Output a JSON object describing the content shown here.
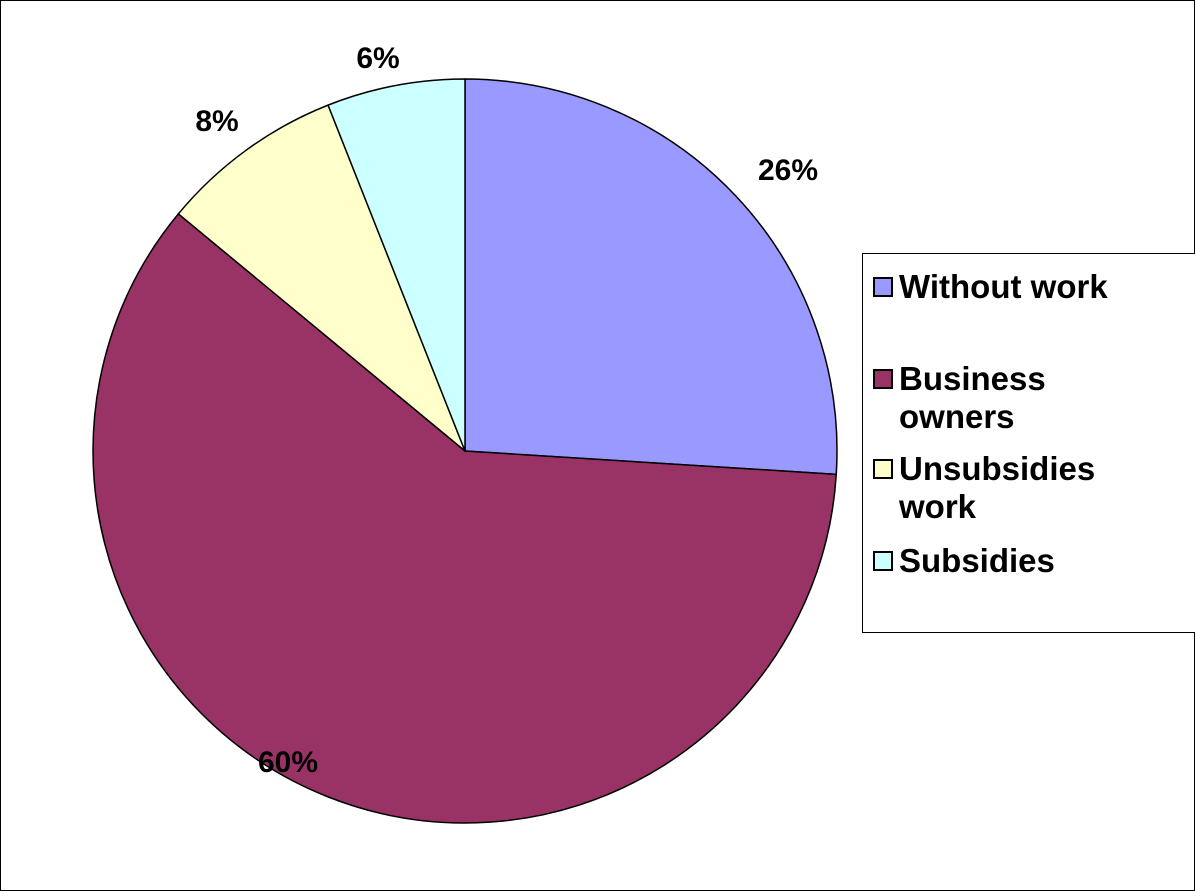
{
  "chart_data": {
    "type": "pie",
    "title": "",
    "categories": [
      "Without work",
      "Business owners",
      "Unsubsidies work",
      "Subsidies"
    ],
    "values": [
      26,
      60,
      8,
      6
    ],
    "value_labels": [
      "26%",
      "60%",
      "8%",
      "6%"
    ],
    "colors": [
      "#9999FF",
      "#993366",
      "#FFFFCC",
      "#CCFFFF"
    ],
    "start_angle_deg": 0,
    "direction": "clockwise",
    "legend": {
      "placement": "right",
      "entries": [
        "Without work",
        "Business owners",
        "Unsubsidies work",
        "Subsidies"
      ]
    }
  }
}
